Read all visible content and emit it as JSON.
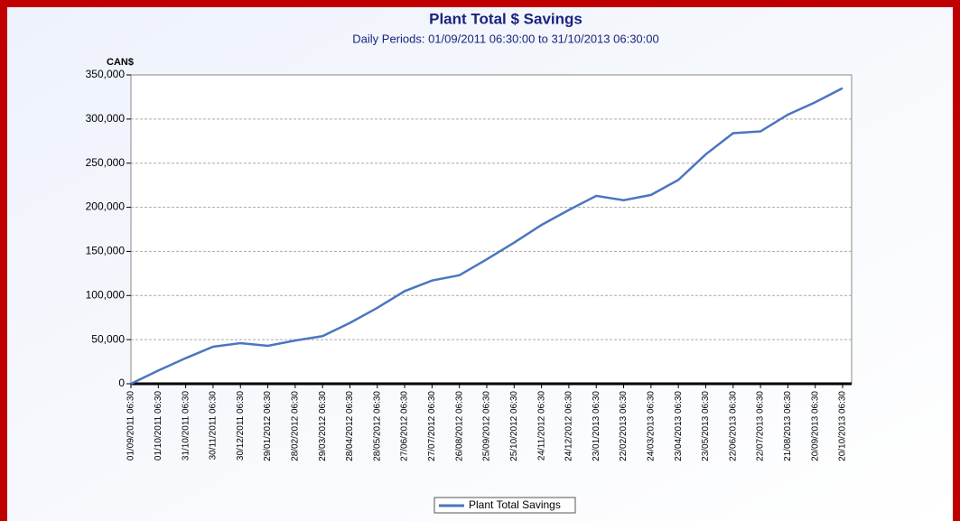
{
  "chart_data": {
    "type": "line",
    "title": "Plant Total $ Savings",
    "subtitle": "Daily Periods: 01/09/2011 06:30:00 to 31/10/2013 06:30:00",
    "y_label": "CAN$",
    "categories": [
      "01/09/2011 06:30",
      "01/10/2011 06:30",
      "31/10/2011 06:30",
      "30/11/2011 06:30",
      "30/12/2011 06:30",
      "29/01/2012 06:30",
      "28/02/2012 06:30",
      "29/03/2012 06:30",
      "28/04/2012 06:30",
      "28/05/2012 06:30",
      "27/06/2012 06:30",
      "27/07/2012 06:30",
      "26/08/2012 06:30",
      "25/09/2012 06:30",
      "25/10/2012 06:30",
      "24/11/2012 06:30",
      "24/12/2012 06:30",
      "23/01/2013 06:30",
      "22/02/2013 06:30",
      "24/03/2013 06:30",
      "23/04/2013 06:30",
      "23/05/2013 06:30",
      "22/06/2013 06:30",
      "22/07/2013 06:30",
      "21/08/2013 06:30",
      "20/09/2013 06:30",
      "20/10/2013 06:30"
    ],
    "series": [
      {
        "name": "Plant Total Savings",
        "color": "#4a76c0",
        "values": [
          0,
          15000,
          29000,
          42000,
          46000,
          43000,
          49000,
          54000,
          69000,
          86000,
          105000,
          117000,
          123000,
          141000,
          160000,
          180000,
          197000,
          213000,
          208000,
          214000,
          231000,
          260000,
          284000,
          286000,
          305000,
          319000,
          335000
        ]
      }
    ],
    "ylim": [
      0,
      350000
    ],
    "yticks": [
      {
        "value": 0,
        "label": "0"
      },
      {
        "value": 50000,
        "label": "50,000"
      },
      {
        "value": 100000,
        "label": "100,000"
      },
      {
        "value": 150000,
        "label": "150,000"
      },
      {
        "value": 200000,
        "label": "200,000"
      },
      {
        "value": 250000,
        "label": "250,000"
      },
      {
        "value": 300000,
        "label": "300,000"
      },
      {
        "value": 350000,
        "label": "350,000"
      }
    ],
    "grid": true,
    "legend": "bottom"
  }
}
